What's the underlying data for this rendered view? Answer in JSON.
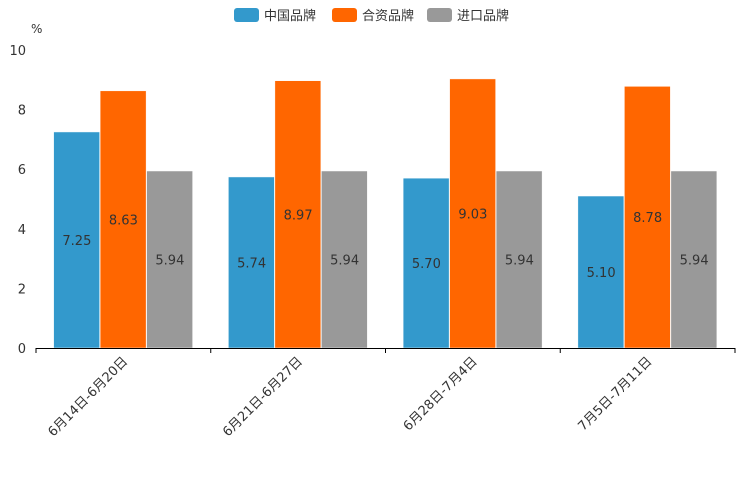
{
  "chart_data": {
    "type": "bar",
    "ylabel": "%",
    "ylim": [
      0,
      10
    ],
    "yticks": [
      0,
      2,
      4,
      6,
      8,
      10
    ],
    "categories": [
      "6月14日-6月20日",
      "6月21日-6月27日",
      "6月28日-7月4日",
      "7月5日-7月11日"
    ],
    "series": [
      {
        "name": "中国品牌",
        "color": "#3399cc",
        "values": [
          7.25,
          5.74,
          5.7,
          5.1
        ],
        "labels": [
          "7.25",
          "5.74",
          "5.70",
          "5.10"
        ]
      },
      {
        "name": "合资品牌",
        "color": "#ff6600",
        "values": [
          8.63,
          8.97,
          9.03,
          8.78
        ],
        "labels": [
          "8.63",
          "8.97",
          "9.03",
          "8.78"
        ]
      },
      {
        "name": "进口品牌",
        "color": "#999999",
        "values": [
          5.94,
          5.94,
          5.94,
          5.94
        ],
        "labels": [
          "5.94",
          "5.94",
          "5.94",
          "5.94"
        ]
      }
    ],
    "legend_position": "top-center",
    "grid": false
  }
}
